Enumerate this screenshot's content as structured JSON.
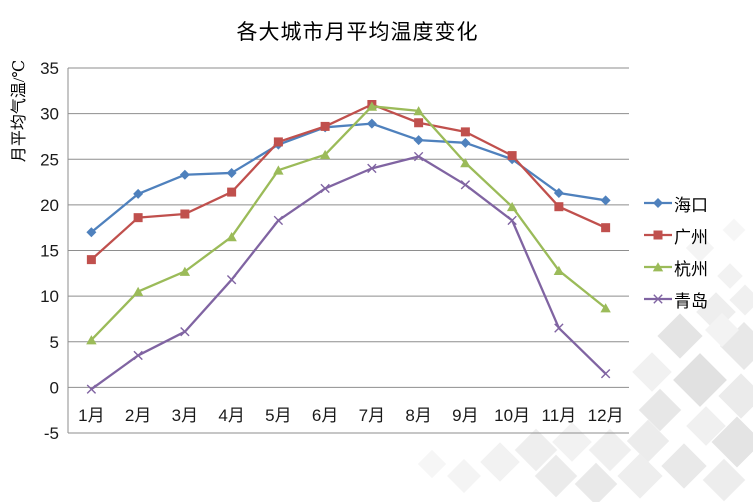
{
  "chart_data": {
    "type": "line",
    "title": "各大城市月平均温度变化",
    "ylabel": "月平均气温/℃",
    "xlabel": "",
    "categories": [
      "1月",
      "2月",
      "3月",
      "4月",
      "5月",
      "6月",
      "7月",
      "8月",
      "9月",
      "10月",
      "11月",
      "12月"
    ],
    "ylim": [
      -5,
      35
    ],
    "ytick_step": 5,
    "yticks": [
      -5,
      0,
      5,
      10,
      15,
      20,
      25,
      30,
      35
    ],
    "grid": true,
    "legend_position": "right",
    "series": [
      {
        "name": "海口",
        "key": "haikou",
        "color": "#4F81BD",
        "marker": "diamond",
        "values": [
          17.0,
          21.2,
          23.3,
          23.5,
          26.6,
          28.5,
          28.9,
          27.1,
          26.8,
          25.0,
          21.3,
          20.5
        ]
      },
      {
        "name": "广州",
        "key": "guangzhou",
        "color": "#C0504D",
        "marker": "square",
        "values": [
          14.0,
          18.6,
          19.0,
          21.4,
          26.9,
          28.6,
          31.0,
          29.0,
          28.0,
          25.4,
          19.8,
          17.5
        ]
      },
      {
        "name": "杭州",
        "key": "hangzhou",
        "color": "#9BBB59",
        "marker": "triangle",
        "values": [
          5.2,
          10.5,
          12.7,
          16.5,
          23.8,
          25.5,
          30.8,
          30.3,
          24.6,
          19.8,
          12.8,
          8.7
        ]
      },
      {
        "name": "青岛",
        "key": "qingdao",
        "color": "#8064A2",
        "marker": "x",
        "values": [
          -0.2,
          3.5,
          6.1,
          11.8,
          18.3,
          21.8,
          24.0,
          25.3,
          22.2,
          18.3,
          6.5,
          1.5
        ]
      }
    ],
    "axis_color": "#8E8E8E",
    "tick_label_color": "#1a1a1a"
  }
}
